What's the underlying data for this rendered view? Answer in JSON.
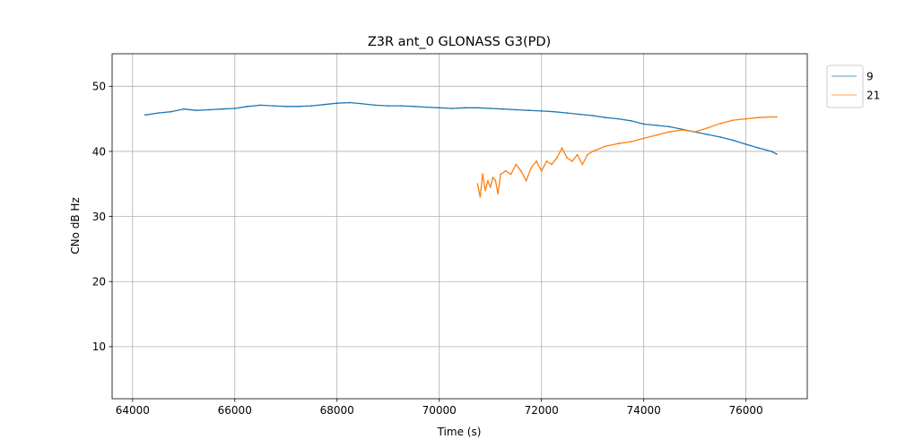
{
  "chart_data": {
    "type": "line",
    "title": "Z3R ant_0 GLONASS G3(PD)",
    "xlabel": "Time (s)",
    "ylabel": "CNo dB Hz",
    "xlim": [
      63600,
      77200
    ],
    "ylim": [
      2,
      55
    ],
    "xticks": [
      64000,
      66000,
      68000,
      70000,
      72000,
      74000,
      76000
    ],
    "yticks": [
      10,
      20,
      30,
      40,
      50
    ],
    "grid": true,
    "legend_position": "outside-top-right",
    "series": [
      {
        "name": "9",
        "color": "#1f77b4",
        "x": [
          64250,
          64500,
          64750,
          65000,
          65250,
          65500,
          65750,
          66000,
          66250,
          66500,
          66750,
          67000,
          67250,
          67500,
          67750,
          68000,
          68250,
          68500,
          68750,
          69000,
          69250,
          69500,
          69750,
          70000,
          70250,
          70500,
          70750,
          71000,
          71250,
          71500,
          71750,
          72000,
          72250,
          72500,
          72750,
          73000,
          73250,
          73500,
          73750,
          74000,
          74250,
          74500,
          74750,
          75000,
          75250,
          75500,
          75750,
          76000,
          76250,
          76500,
          76600
        ],
        "y": [
          45.6,
          45.9,
          46.1,
          46.5,
          46.3,
          46.4,
          46.5,
          46.6,
          46.9,
          47.1,
          47.0,
          46.9,
          46.9,
          47.0,
          47.2,
          47.4,
          47.5,
          47.3,
          47.1,
          47.0,
          47.0,
          46.9,
          46.8,
          46.7,
          46.6,
          46.7,
          46.7,
          46.6,
          46.5,
          46.4,
          46.3,
          46.2,
          46.1,
          45.9,
          45.7,
          45.5,
          45.2,
          45.0,
          44.7,
          44.2,
          44.0,
          43.8,
          43.4,
          43.0,
          42.6,
          42.2,
          41.7,
          41.1,
          40.5,
          40.0,
          39.6
        ]
      },
      {
        "name": "21",
        "color": "#ff7f0e",
        "x": [
          70750,
          70800,
          70850,
          70900,
          70950,
          71000,
          71050,
          71100,
          71150,
          71200,
          71300,
          71400,
          71500,
          71600,
          71700,
          71800,
          71900,
          72000,
          72100,
          72200,
          72300,
          72400,
          72500,
          72600,
          72700,
          72800,
          72900,
          73000,
          73250,
          73500,
          73750,
          74000,
          74250,
          74500,
          74750,
          75000,
          75250,
          75500,
          75750,
          76000,
          76250,
          76500,
          76600
        ],
        "y": [
          35.0,
          33.0,
          36.5,
          34.0,
          35.5,
          34.5,
          36.0,
          35.5,
          33.5,
          36.5,
          37.0,
          36.5,
          38.0,
          37.0,
          35.5,
          37.5,
          38.5,
          37.0,
          38.5,
          38.0,
          39.0,
          40.5,
          39.0,
          38.5,
          39.5,
          38.0,
          39.5,
          40.0,
          40.8,
          41.2,
          41.5,
          42.0,
          42.5,
          43.0,
          43.3,
          43.0,
          43.6,
          44.3,
          44.8,
          45.0,
          45.2,
          45.3,
          45.3
        ]
      }
    ]
  }
}
